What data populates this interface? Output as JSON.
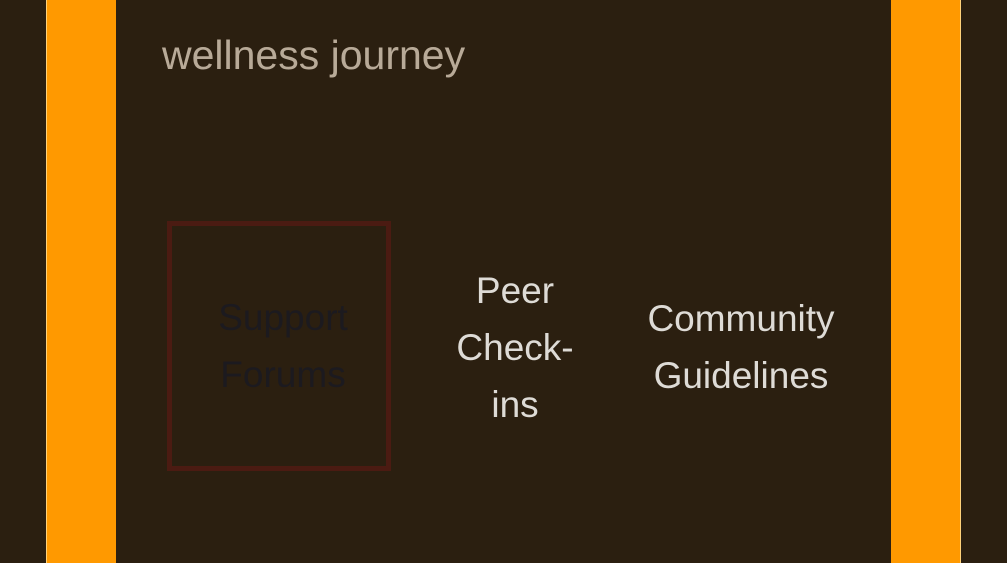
{
  "header": {
    "title": "wellness journey"
  },
  "tiles": [
    {
      "label_line1": "Support",
      "label_line2": "Forums"
    },
    {
      "label_line1": "Peer",
      "label_line2": "Check-",
      "label_line3": "ins"
    },
    {
      "label_line1": "Community",
      "label_line2": "Guidelines"
    }
  ],
  "colors": {
    "background": "#2b1f10",
    "frame": "#ff9900",
    "title_text": "#b8aa98",
    "tile_text": "#dedbd6",
    "selected_border": "#4b1b12",
    "selected_text": "#1c1a1f"
  }
}
